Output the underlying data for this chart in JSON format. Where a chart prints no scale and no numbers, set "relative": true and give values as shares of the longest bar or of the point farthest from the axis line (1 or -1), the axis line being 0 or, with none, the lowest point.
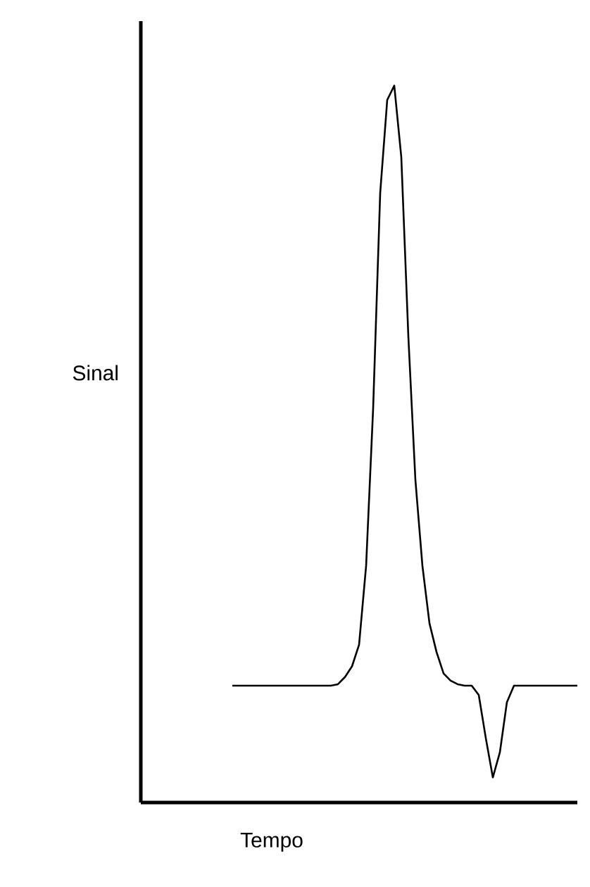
{
  "chart_data": {
    "type": "line",
    "relative": true,
    "xlabel": "Tempo",
    "ylabel": "Sinal",
    "color": "#000000",
    "categories": [
      null,
      null,
      null,
      null,
      null,
      null,
      null,
      null,
      null,
      null,
      null,
      null,
      null,
      null,
      null,
      null,
      null,
      null,
      null,
      null,
      null,
      null,
      null,
      null,
      null,
      null,
      null,
      null,
      null,
      null,
      null,
      null,
      null,
      null,
      null,
      null,
      null,
      null,
      null,
      null,
      null,
      null,
      null,
      null,
      null,
      null,
      null,
      null,
      null,
      null,
      null,
      null,
      null,
      null,
      null,
      null,
      null,
      null,
      null,
      null,
      null,
      null,
      null
    ],
    "values": [
      null,
      null,
      null,
      null,
      null,
      null,
      null,
      null,
      null,
      null,
      null,
      null,
      null,
      0.163,
      0.163,
      0.163,
      0.163,
      0.163,
      0.163,
      0.163,
      0.163,
      0.163,
      0.163,
      0.163,
      0.163,
      0.163,
      0.163,
      0.163,
      0.165,
      0.175,
      0.19,
      0.22,
      0.33,
      0.55,
      0.85,
      0.98,
      1.0,
      0.9,
      0.65,
      0.45,
      0.33,
      0.25,
      0.21,
      0.18,
      0.17,
      0.165,
      0.163,
      0.163,
      0.15,
      0.09,
      0.035,
      0.07,
      0.14,
      0.163,
      0.163,
      0.163,
      0.163,
      0.163,
      0.163,
      0.163,
      0.163,
      0.163,
      0.163
    ]
  }
}
